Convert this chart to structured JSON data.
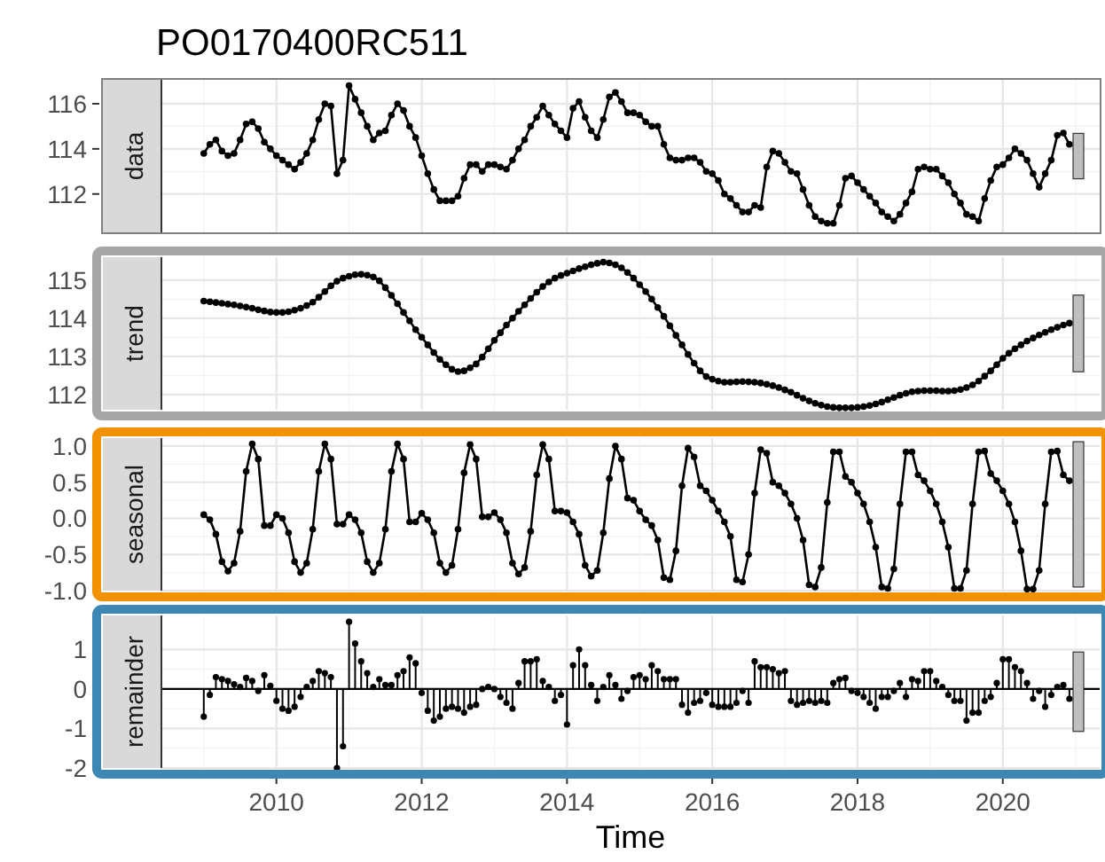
{
  "chart_data": [
    {
      "type": "line",
      "title": "PO0170400RC511",
      "ylabel": "data",
      "marker": "circle",
      "grid": true,
      "tick_labels": "y",
      "xlim": [
        "2008-06",
        "2021-05"
      ],
      "xticks": [
        "2010",
        "2012",
        "2014",
        "2016",
        "2018",
        "2020"
      ],
      "ylim": [
        110.3,
        117.06
      ],
      "yticks": [
        112,
        114,
        116
      ],
      "x": [
        "2009-01",
        "2009-02",
        "2009-03",
        "2009-04",
        "2009-05",
        "2009-06",
        "2009-07",
        "2009-08",
        "2009-09",
        "2009-10",
        "2009-11",
        "2009-12",
        "2010-01",
        "2010-02",
        "2010-03",
        "2010-04",
        "2010-05",
        "2010-06",
        "2010-07",
        "2010-08",
        "2010-09",
        "2010-10",
        "2010-11",
        "2010-12",
        "2011-01",
        "2011-02",
        "2011-03",
        "2011-04",
        "2011-05",
        "2011-06",
        "2011-07",
        "2011-08",
        "2011-09",
        "2011-10",
        "2011-11",
        "2011-12",
        "2012-01",
        "2012-02",
        "2012-03",
        "2012-04",
        "2012-05",
        "2012-06",
        "2012-07",
        "2012-08",
        "2012-09",
        "2012-10",
        "2012-11",
        "2012-12",
        "2013-01",
        "2013-02",
        "2013-03",
        "2013-04",
        "2013-05",
        "2013-06",
        "2013-07",
        "2013-08",
        "2013-09",
        "2013-10",
        "2013-11",
        "2013-12",
        "2014-01",
        "2014-02",
        "2014-03",
        "2014-04",
        "2014-05",
        "2014-06",
        "2014-07",
        "2014-08",
        "2014-09",
        "2014-10",
        "2014-11",
        "2014-12",
        "2015-01",
        "2015-02",
        "2015-03",
        "2015-04",
        "2015-05",
        "2015-06",
        "2015-07",
        "2015-08",
        "2015-09",
        "2015-10",
        "2015-11",
        "2015-12",
        "2016-01",
        "2016-02",
        "2016-03",
        "2016-04",
        "2016-05",
        "2016-06",
        "2016-07",
        "2016-08",
        "2016-09",
        "2016-10",
        "2016-11",
        "2016-12",
        "2017-01",
        "2017-02",
        "2017-03",
        "2017-04",
        "2017-05",
        "2017-06",
        "2017-07",
        "2017-08",
        "2017-09",
        "2017-10",
        "2017-11",
        "2017-12",
        "2018-01",
        "2018-02",
        "2018-03",
        "2018-04",
        "2018-05",
        "2018-06",
        "2018-07",
        "2018-08",
        "2018-09",
        "2018-10",
        "2018-11",
        "2018-12",
        "2019-01",
        "2019-02",
        "2019-03",
        "2019-04",
        "2019-05",
        "2019-06",
        "2019-07",
        "2019-08",
        "2019-09",
        "2019-10",
        "2019-11",
        "2019-12",
        "2020-01",
        "2020-02",
        "2020-03",
        "2020-04",
        "2020-05",
        "2020-06",
        "2020-07",
        "2020-08",
        "2020-09",
        "2020-10",
        "2020-11",
        "2020-12"
      ],
      "series": [
        {
          "color": "#000000",
          "values": [
            113.8,
            114.2,
            114.4,
            113.9,
            113.7,
            113.8,
            114.4,
            115.1,
            115.2,
            114.9,
            114.3,
            114.0,
            113.7,
            113.5,
            113.3,
            113.1,
            113.4,
            113.8,
            114.4,
            115.3,
            116.0,
            115.9,
            112.9,
            113.5,
            116.8,
            116.2,
            115.6,
            115.0,
            114.4,
            114.7,
            114.8,
            115.5,
            116.0,
            115.7,
            115.0,
            114.5,
            113.7,
            112.9,
            112.2,
            111.7,
            111.7,
            111.7,
            111.9,
            112.7,
            113.3,
            113.3,
            113.0,
            113.3,
            113.3,
            113.2,
            113.1,
            113.5,
            114.0,
            114.4,
            115.0,
            115.4,
            115.9,
            115.5,
            115.1,
            114.8,
            114.5,
            115.8,
            116.1,
            115.4,
            114.8,
            114.5,
            115.3,
            116.3,
            116.5,
            116.1,
            115.6,
            115.6,
            115.5,
            115.2,
            115.0,
            115.0,
            114.2,
            113.6,
            113.5,
            113.5,
            113.6,
            113.6,
            113.4,
            113.0,
            112.9,
            112.6,
            112.0,
            111.8,
            111.5,
            111.2,
            111.2,
            111.5,
            111.4,
            113.2,
            113.9,
            113.8,
            113.4,
            113.0,
            112.9,
            112.2,
            111.5,
            111.0,
            110.8,
            110.7,
            110.7,
            111.5,
            112.7,
            112.8,
            112.5,
            112.2,
            111.9,
            111.6,
            111.2,
            111.0,
            110.8,
            111.1,
            111.6,
            112.1,
            113.1,
            113.2,
            113.1,
            113.1,
            112.8,
            112.5,
            112.0,
            111.6,
            111.1,
            111.0,
            110.8,
            111.8,
            112.6,
            113.2,
            113.3,
            113.6,
            114.0,
            113.8,
            113.5,
            112.9,
            112.3,
            112.9,
            113.5,
            114.6,
            114.7,
            114.2
          ]
        }
      ]
    },
    {
      "type": "line",
      "ylabel": "trend",
      "marker": "circle",
      "grid": true,
      "tick_labels": "y",
      "xlim": [
        "2008-06",
        "2021-05"
      ],
      "xticks": [
        "2010",
        "2012",
        "2014",
        "2016",
        "2018",
        "2020"
      ],
      "ylim": [
        111.6,
        115.6
      ],
      "yticks": [
        112,
        113,
        114,
        115
      ],
      "x": [
        "2009-01",
        "2009-02",
        "2009-03",
        "2009-04",
        "2009-05",
        "2009-06",
        "2009-07",
        "2009-08",
        "2009-09",
        "2009-10",
        "2009-11",
        "2009-12",
        "2010-01",
        "2010-02",
        "2010-03",
        "2010-04",
        "2010-05",
        "2010-06",
        "2010-07",
        "2010-08",
        "2010-09",
        "2010-10",
        "2010-11",
        "2010-12",
        "2011-01",
        "2011-02",
        "2011-03",
        "2011-04",
        "2011-05",
        "2011-06",
        "2011-07",
        "2011-08",
        "2011-09",
        "2011-10",
        "2011-11",
        "2011-12",
        "2012-01",
        "2012-02",
        "2012-03",
        "2012-04",
        "2012-05",
        "2012-06",
        "2012-07",
        "2012-08",
        "2012-09",
        "2012-10",
        "2012-11",
        "2012-12",
        "2013-01",
        "2013-02",
        "2013-03",
        "2013-04",
        "2013-05",
        "2013-06",
        "2013-07",
        "2013-08",
        "2013-09",
        "2013-10",
        "2013-11",
        "2013-12",
        "2014-01",
        "2014-02",
        "2014-03",
        "2014-04",
        "2014-05",
        "2014-06",
        "2014-07",
        "2014-08",
        "2014-09",
        "2014-10",
        "2014-11",
        "2014-12",
        "2015-01",
        "2015-02",
        "2015-03",
        "2015-04",
        "2015-05",
        "2015-06",
        "2015-07",
        "2015-08",
        "2015-09",
        "2015-10",
        "2015-11",
        "2015-12",
        "2016-01",
        "2016-02",
        "2016-03",
        "2016-04",
        "2016-05",
        "2016-06",
        "2016-07",
        "2016-08",
        "2016-09",
        "2016-10",
        "2016-11",
        "2016-12",
        "2017-01",
        "2017-02",
        "2017-03",
        "2017-04",
        "2017-05",
        "2017-06",
        "2017-07",
        "2017-08",
        "2017-09",
        "2017-10",
        "2017-11",
        "2017-12",
        "2018-01",
        "2018-02",
        "2018-03",
        "2018-04",
        "2018-05",
        "2018-06",
        "2018-07",
        "2018-08",
        "2018-09",
        "2018-10",
        "2018-11",
        "2018-12",
        "2019-01",
        "2019-02",
        "2019-03",
        "2019-04",
        "2019-05",
        "2019-06",
        "2019-07",
        "2019-08",
        "2019-09",
        "2019-10",
        "2019-11",
        "2019-12",
        "2020-01",
        "2020-02",
        "2020-03",
        "2020-04",
        "2020-05",
        "2020-06",
        "2020-07",
        "2020-08",
        "2020-09",
        "2020-10",
        "2020-11",
        "2020-12"
      ],
      "series": [
        {
          "color": "#000000",
          "values": [
            114.45,
            114.43,
            114.41,
            114.39,
            114.37,
            114.35,
            114.32,
            114.29,
            114.26,
            114.22,
            114.19,
            114.16,
            114.15,
            114.15,
            114.17,
            114.21,
            114.26,
            114.33,
            114.42,
            114.55,
            114.7,
            114.85,
            114.97,
            115.05,
            115.1,
            115.14,
            115.15,
            115.13,
            115.08,
            114.98,
            114.8,
            114.6,
            114.38,
            114.15,
            113.93,
            113.7,
            113.5,
            113.3,
            113.1,
            112.92,
            112.78,
            112.66,
            112.6,
            112.62,
            112.7,
            112.8,
            112.98,
            113.2,
            113.42,
            113.62,
            113.82,
            114.0,
            114.18,
            114.35,
            114.52,
            114.68,
            114.83,
            114.95,
            115.05,
            115.12,
            115.18,
            115.24,
            115.3,
            115.35,
            115.4,
            115.44,
            115.47,
            115.45,
            115.4,
            115.32,
            115.2,
            115.05,
            114.88,
            114.7,
            114.5,
            114.28,
            114.05,
            113.8,
            113.55,
            113.3,
            113.05,
            112.82,
            112.62,
            112.47,
            112.4,
            112.35,
            112.32,
            112.32,
            112.33,
            112.34,
            112.33,
            112.32,
            112.3,
            112.27,
            112.23,
            112.18,
            112.12,
            112.06,
            111.98,
            111.9,
            111.83,
            111.77,
            111.72,
            111.68,
            111.66,
            111.65,
            111.65,
            111.65,
            111.66,
            111.68,
            111.71,
            111.75,
            111.8,
            111.86,
            111.92,
            111.98,
            112.03,
            112.07,
            112.09,
            112.1,
            112.1,
            112.1,
            112.09,
            112.09,
            112.1,
            112.13,
            112.18,
            112.25,
            112.35,
            112.48,
            112.62,
            112.78,
            112.95,
            113.08,
            113.2,
            113.3,
            113.4,
            113.48,
            113.56,
            113.63,
            113.7,
            113.76,
            113.82,
            113.87
          ]
        }
      ]
    },
    {
      "type": "line",
      "ylabel": "seasonal",
      "marker": "circle",
      "grid": true,
      "tick_labels": "y",
      "xlim": [
        "2008-06",
        "2021-05"
      ],
      "xticks": [
        "2010",
        "2012",
        "2014",
        "2016",
        "2018",
        "2020"
      ],
      "ylim": [
        -1.0,
        1.11
      ],
      "yticks": [
        {
          "value": -1,
          "label": "-1.0"
        },
        {
          "value": -0.5,
          "label": "-0.5"
        },
        {
          "value": 0,
          "label": "0.0"
        },
        {
          "value": 0.5,
          "label": "0.5"
        },
        {
          "value": 1,
          "label": "1.0"
        }
      ],
      "x": [
        "2009-01",
        "2009-02",
        "2009-03",
        "2009-04",
        "2009-05",
        "2009-06",
        "2009-07",
        "2009-08",
        "2009-09",
        "2009-10",
        "2009-11",
        "2009-12",
        "2010-01",
        "2010-02",
        "2010-03",
        "2010-04",
        "2010-05",
        "2010-06",
        "2010-07",
        "2010-08",
        "2010-09",
        "2010-10",
        "2010-11",
        "2010-12",
        "2011-01",
        "2011-02",
        "2011-03",
        "2011-04",
        "2011-05",
        "2011-06",
        "2011-07",
        "2011-08",
        "2011-09",
        "2011-10",
        "2011-11",
        "2011-12",
        "2012-01",
        "2012-02",
        "2012-03",
        "2012-04",
        "2012-05",
        "2012-06",
        "2012-07",
        "2012-08",
        "2012-09",
        "2012-10",
        "2012-11",
        "2012-12",
        "2013-01",
        "2013-02",
        "2013-03",
        "2013-04",
        "2013-05",
        "2013-06",
        "2013-07",
        "2013-08",
        "2013-09",
        "2013-10",
        "2013-11",
        "2013-12",
        "2014-01",
        "2014-02",
        "2014-03",
        "2014-04",
        "2014-05",
        "2014-06",
        "2014-07",
        "2014-08",
        "2014-09",
        "2014-10",
        "2014-11",
        "2014-12",
        "2015-01",
        "2015-02",
        "2015-03",
        "2015-04",
        "2015-05",
        "2015-06",
        "2015-07",
        "2015-08",
        "2015-09",
        "2015-10",
        "2015-11",
        "2015-12",
        "2016-01",
        "2016-02",
        "2016-03",
        "2016-04",
        "2016-05",
        "2016-06",
        "2016-07",
        "2016-08",
        "2016-09",
        "2016-10",
        "2016-11",
        "2016-12",
        "2017-01",
        "2017-02",
        "2017-03",
        "2017-04",
        "2017-05",
        "2017-06",
        "2017-07",
        "2017-08",
        "2017-09",
        "2017-10",
        "2017-11",
        "2017-12",
        "2018-01",
        "2018-02",
        "2018-03",
        "2018-04",
        "2018-05",
        "2018-06",
        "2018-07",
        "2018-08",
        "2018-09",
        "2018-10",
        "2018-11",
        "2018-12",
        "2019-01",
        "2019-02",
        "2019-03",
        "2019-04",
        "2019-05",
        "2019-06",
        "2019-07",
        "2019-08",
        "2019-09",
        "2019-10",
        "2019-11",
        "2019-12",
        "2020-01",
        "2020-02",
        "2020-03",
        "2020-04",
        "2020-05",
        "2020-06",
        "2020-07",
        "2020-08",
        "2020-09",
        "2020-10",
        "2020-11",
        "2020-12"
      ],
      "series": [
        {
          "color": "#000000",
          "values": [
            0.05,
            -0.02,
            -0.22,
            -0.6,
            -0.73,
            -0.62,
            -0.18,
            0.65,
            1.03,
            0.82,
            -0.1,
            -0.1,
            0.05,
            0.0,
            -0.2,
            -0.6,
            -0.75,
            -0.62,
            -0.15,
            0.65,
            1.03,
            0.82,
            -0.08,
            -0.08,
            0.05,
            -0.02,
            -0.2,
            -0.6,
            -0.75,
            -0.62,
            -0.15,
            0.65,
            1.03,
            0.82,
            -0.05,
            -0.05,
            0.07,
            -0.02,
            -0.2,
            -0.62,
            -0.75,
            -0.65,
            -0.15,
            0.63,
            1.02,
            0.82,
            0.02,
            0.02,
            0.08,
            -0.02,
            -0.2,
            -0.62,
            -0.77,
            -0.68,
            -0.18,
            0.6,
            1.02,
            0.82,
            0.1,
            0.1,
            0.08,
            -0.05,
            -0.22,
            -0.65,
            -0.8,
            -0.72,
            -0.2,
            0.55,
            1.0,
            0.82,
            0.28,
            0.25,
            0.1,
            -0.02,
            -0.1,
            -0.3,
            -0.82,
            -0.85,
            -0.45,
            0.45,
            0.97,
            0.85,
            0.45,
            0.38,
            0.25,
            0.1,
            -0.05,
            -0.25,
            -0.85,
            -0.88,
            -0.5,
            0.35,
            0.95,
            0.9,
            0.5,
            0.45,
            0.35,
            0.2,
            0.0,
            -0.3,
            -0.92,
            -0.95,
            -0.68,
            0.22,
            0.92,
            0.92,
            0.58,
            0.5,
            0.35,
            0.2,
            -0.05,
            -0.4,
            -0.95,
            -0.97,
            -0.7,
            0.2,
            0.92,
            0.92,
            0.6,
            0.52,
            0.38,
            0.2,
            -0.05,
            -0.4,
            -0.97,
            -0.97,
            -0.72,
            0.2,
            0.92,
            0.93,
            0.62,
            0.52,
            0.38,
            0.2,
            -0.05,
            -0.45,
            -0.98,
            -0.98,
            -0.72,
            0.2,
            0.92,
            0.93,
            0.6,
            0.52
          ]
        }
      ]
    },
    {
      "type": "lollipop",
      "ylabel": "remainder",
      "xlabel": "Time",
      "grid": true,
      "xlim": [
        "2008-06",
        "2021-05"
      ],
      "xticks": [
        "2010",
        "2012",
        "2014",
        "2016",
        "2018",
        "2020"
      ],
      "ylim": [
        -2.0,
        1.86
      ],
      "yticks": [
        -2,
        -1,
        0,
        1
      ],
      "ref_lines": [
        {
          "axis": "y",
          "value": 0
        }
      ],
      "x": [
        "2009-01",
        "2009-02",
        "2009-03",
        "2009-04",
        "2009-05",
        "2009-06",
        "2009-07",
        "2009-08",
        "2009-09",
        "2009-10",
        "2009-11",
        "2009-12",
        "2010-01",
        "2010-02",
        "2010-03",
        "2010-04",
        "2010-05",
        "2010-06",
        "2010-07",
        "2010-08",
        "2010-09",
        "2010-10",
        "2010-11",
        "2010-12",
        "2011-01",
        "2011-02",
        "2011-03",
        "2011-04",
        "2011-05",
        "2011-06",
        "2011-07",
        "2011-08",
        "2011-09",
        "2011-10",
        "2011-11",
        "2011-12",
        "2012-01",
        "2012-02",
        "2012-03",
        "2012-04",
        "2012-05",
        "2012-06",
        "2012-07",
        "2012-08",
        "2012-09",
        "2012-10",
        "2012-11",
        "2012-12",
        "2013-01",
        "2013-02",
        "2013-03",
        "2013-04",
        "2013-05",
        "2013-06",
        "2013-07",
        "2013-08",
        "2013-09",
        "2013-10",
        "2013-11",
        "2013-12",
        "2014-01",
        "2014-02",
        "2014-03",
        "2014-04",
        "2014-05",
        "2014-06",
        "2014-07",
        "2014-08",
        "2014-09",
        "2014-10",
        "2014-11",
        "2014-12",
        "2015-01",
        "2015-02",
        "2015-03",
        "2015-04",
        "2015-05",
        "2015-06",
        "2015-07",
        "2015-08",
        "2015-09",
        "2015-10",
        "2015-11",
        "2015-12",
        "2016-01",
        "2016-02",
        "2016-03",
        "2016-04",
        "2016-05",
        "2016-06",
        "2016-07",
        "2016-08",
        "2016-09",
        "2016-10",
        "2016-11",
        "2016-12",
        "2017-01",
        "2017-02",
        "2017-03",
        "2017-04",
        "2017-05",
        "2017-06",
        "2017-07",
        "2017-08",
        "2017-09",
        "2017-10",
        "2017-11",
        "2017-12",
        "2018-01",
        "2018-02",
        "2018-03",
        "2018-04",
        "2018-05",
        "2018-06",
        "2018-07",
        "2018-08",
        "2018-09",
        "2018-10",
        "2018-11",
        "2018-12",
        "2019-01",
        "2019-02",
        "2019-03",
        "2019-04",
        "2019-05",
        "2019-06",
        "2019-07",
        "2019-08",
        "2019-09",
        "2019-10",
        "2019-11",
        "2019-12",
        "2020-01",
        "2020-02",
        "2020-03",
        "2020-04",
        "2020-05",
        "2020-06",
        "2020-07",
        "2020-08",
        "2020-09",
        "2020-10",
        "2020-11",
        "2020-12"
      ],
      "series": [
        {
          "color": "#000000",
          "values": [
            -0.7,
            -0.15,
            0.3,
            0.25,
            0.2,
            0.12,
            0.05,
            0.28,
            0.2,
            -0.05,
            0.35,
            0.08,
            -0.3,
            -0.5,
            -0.55,
            -0.45,
            -0.2,
            0.05,
            0.2,
            0.45,
            0.4,
            0.3,
            -2.0,
            -1.45,
            1.7,
            1.15,
            0.7,
            0.4,
            0.05,
            0.25,
            0.1,
            0.1,
            0.35,
            0.45,
            0.8,
            0.65,
            -0.1,
            -0.55,
            -0.8,
            -0.7,
            -0.5,
            -0.45,
            -0.5,
            -0.6,
            -0.45,
            -0.4,
            0.0,
            0.05,
            0.0,
            -0.2,
            -0.35,
            -0.5,
            0.15,
            0.7,
            0.7,
            0.75,
            0.2,
            0.05,
            -0.3,
            -0.15,
            -0.9,
            0.6,
            1.0,
            0.6,
            0.1,
            -0.3,
            0.05,
            0.35,
            0.1,
            -0.25,
            -0.05,
            0.3,
            0.35,
            0.25,
            0.6,
            0.45,
            0.25,
            0.25,
            0.25,
            -0.4,
            -0.6,
            -0.35,
            -0.3,
            -0.1,
            -0.4,
            -0.45,
            -0.45,
            -0.45,
            -0.35,
            -0.05,
            -0.35,
            0.7,
            0.55,
            0.55,
            0.5,
            0.4,
            0.45,
            -0.3,
            -0.4,
            -0.35,
            -0.3,
            -0.35,
            -0.3,
            -0.35,
            0.15,
            0.25,
            0.28,
            -0.05,
            -0.1,
            -0.2,
            -0.35,
            -0.5,
            -0.2,
            -0.2,
            -0.05,
            0.15,
            -0.2,
            0.25,
            0.2,
            0.45,
            0.45,
            0.2,
            0.05,
            -0.15,
            -0.3,
            -0.3,
            -0.8,
            -0.6,
            -0.6,
            -0.3,
            -0.2,
            0.15,
            0.75,
            0.75,
            0.55,
            0.45,
            0.15,
            -0.25,
            -0.05,
            -0.45,
            -0.15,
            0.05,
            0.1,
            -0.25
          ]
        }
      ]
    }
  ]
}
